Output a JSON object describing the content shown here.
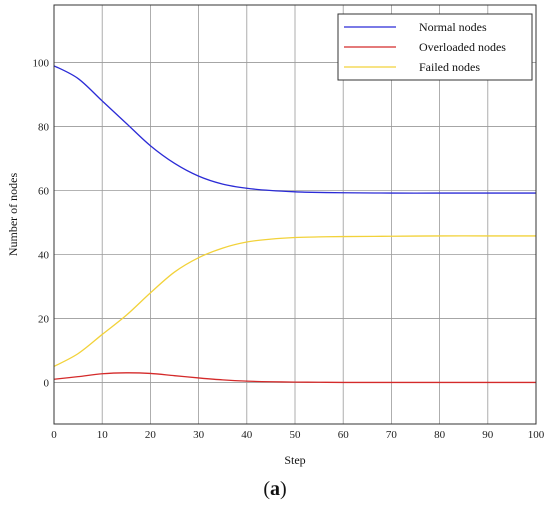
{
  "chart_data": {
    "type": "line",
    "xlabel": "Step",
    "ylabel": "Number of nodes",
    "xlim": [
      0,
      100
    ],
    "ylim": [
      -13,
      118
    ],
    "xticks": [
      0,
      10,
      20,
      30,
      40,
      50,
      60,
      70,
      80,
      90,
      100
    ],
    "yticks": [
      0,
      20,
      40,
      60,
      80,
      100
    ],
    "grid": true,
    "legend_position": "top-right",
    "series": [
      {
        "name": "Normal nodes",
        "color": "#2b2bd6",
        "x": [
          0,
          5,
          10,
          15,
          20,
          25,
          30,
          35,
          40,
          45,
          50,
          55,
          60,
          70,
          80,
          90,
          100
        ],
        "y": [
          99,
          95,
          88,
          81,
          74,
          68.5,
          64.5,
          62,
          60.7,
          60,
          59.6,
          59.4,
          59.3,
          59.2,
          59.2,
          59.2,
          59.2
        ]
      },
      {
        "name": "Overloaded nodes",
        "color": "#d42a2a",
        "x": [
          0,
          5,
          10,
          15,
          20,
          25,
          30,
          35,
          40,
          45,
          50,
          55,
          60,
          70,
          80,
          90,
          100
        ],
        "y": [
          1,
          1.8,
          2.7,
          3,
          2.8,
          2.1,
          1.4,
          0.8,
          0.4,
          0.2,
          0.1,
          0.05,
          0,
          0,
          0,
          0,
          0
        ]
      },
      {
        "name": "Failed nodes",
        "color": "#f2d23a",
        "x": [
          0,
          5,
          10,
          15,
          20,
          25,
          30,
          35,
          40,
          45,
          50,
          55,
          60,
          70,
          80,
          90,
          100
        ],
        "y": [
          5,
          9,
          15,
          21,
          28,
          34.5,
          39,
          42,
          43.9,
          44.8,
          45.3,
          45.5,
          45.6,
          45.7,
          45.8,
          45.8,
          45.8
        ]
      }
    ]
  },
  "caption": {
    "open": "(",
    "letter": "a",
    "close": ")"
  }
}
